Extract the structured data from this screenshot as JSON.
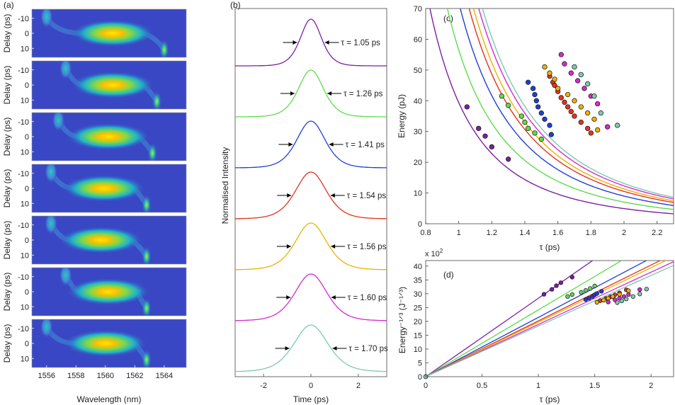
{
  "panels": {
    "a": {
      "label": "(a)",
      "type": "heatmap",
      "xlabel": "Wavelength (nm)",
      "ylabel": "Delay (ps)",
      "xticks": [
        "1556",
        "1558",
        "1560",
        "1562",
        "1564"
      ],
      "yticks": [
        "-10",
        "0",
        "10"
      ],
      "xlim": [
        1555,
        1565.5
      ],
      "ylim": [
        -16,
        16
      ],
      "rows": [
        {
          "main": [
            1560.5,
            0
          ],
          "side": [
            1556.0,
            -11
          ],
          "tail": [
            1564.0,
            11
          ]
        },
        {
          "main": [
            1560.5,
            0
          ],
          "side": [
            1557.3,
            -11
          ],
          "tail": [
            1563.5,
            11
          ]
        },
        {
          "main": [
            1560.2,
            0
          ],
          "side": [
            1556.8,
            -11
          ],
          "tail": [
            1563.2,
            11
          ]
        },
        {
          "main": [
            1559.9,
            0
          ],
          "side": [
            1556.3,
            -11
          ],
          "tail": [
            1562.8,
            11
          ]
        },
        {
          "main": [
            1559.7,
            0
          ],
          "side": [
            1556.3,
            -11
          ],
          "tail": [
            1562.8,
            11
          ]
        },
        {
          "main": [
            1560.2,
            0
          ],
          "side": [
            1557.3,
            -11
          ],
          "tail": [
            1562.8,
            11
          ]
        },
        {
          "main": [
            1560.0,
            0
          ],
          "side": [
            1556.0,
            -11
          ],
          "tail": [
            1562.8,
            11
          ]
        }
      ]
    },
    "b": {
      "label": "(b)",
      "type": "line",
      "xlabel": "Time (ps)",
      "ylabel": "Normalised Intensity",
      "xticks": [
        "-2",
        "0",
        "2"
      ],
      "xlim": [
        -3.2,
        3.2
      ],
      "traces": [
        {
          "tau": "τ = 1.05 ps",
          "fwhm": 1.05,
          "color": "#7B1FA2"
        },
        {
          "tau": "τ = 1.26 ps",
          "fwhm": 1.26,
          "color": "#5EDB4C"
        },
        {
          "tau": "τ = 1.41 ps",
          "fwhm": 1.41,
          "color": "#1F3FD6"
        },
        {
          "tau": "τ = 1.54 ps",
          "fwhm": 1.54,
          "color": "#E2341D"
        },
        {
          "tau": "τ = 1.56 ps",
          "fwhm": 1.56,
          "color": "#EDB100"
        },
        {
          "tau": "τ = 1.60 ps",
          "fwhm": 1.6,
          "color": "#D52ACE"
        },
        {
          "tau": "τ = 1.70 ps",
          "fwhm": 1.7,
          "color": "#7CC9B4"
        }
      ]
    }
  },
  "chart_data": [
    {
      "panel": "(c)",
      "type": "scatter",
      "xlabel": "τ (ps)",
      "ylabel": "Energy (pJ)",
      "xlim": [
        0.8,
        2.3
      ],
      "ylim": [
        0,
        70
      ],
      "xticks": [
        "0.8",
        "1",
        "1.2",
        "1.4",
        "1.6",
        "1.8",
        "2",
        "2.2"
      ],
      "yticks": [
        "0",
        "10",
        "20",
        "30",
        "40",
        "50",
        "60",
        "70"
      ],
      "series": [
        {
          "color": "#7B1FA2",
          "K": 39.4,
          "points": [
            [
              1.05,
              38
            ],
            [
              1.12,
              31
            ],
            [
              1.16,
              28.5
            ],
            [
              1.2,
              25
            ],
            [
              1.3,
              21
            ]
          ]
        },
        {
          "color": "#5EDB4C",
          "K": 56.5,
          "points": [
            [
              1.26,
              41.5
            ],
            [
              1.3,
              38.5
            ],
            [
              1.38,
              35
            ],
            [
              1.4,
              33
            ],
            [
              1.42,
              31
            ],
            [
              1.46,
              29.5
            ],
            [
              1.5,
              27.5
            ]
          ]
        },
        {
          "color": "#1F3FD6",
          "K": 72.0,
          "points": [
            [
              1.42,
              46
            ],
            [
              1.45,
              44
            ],
            [
              1.46,
              42
            ],
            [
              1.47,
              40
            ],
            [
              1.48,
              38
            ],
            [
              1.5,
              36
            ],
            [
              1.52,
              34
            ],
            [
              1.55,
              32
            ],
            [
              1.56,
              29
            ]
          ]
        },
        {
          "color": "#E2341D",
          "K": 84.1,
          "points": [
            [
              1.55,
              48
            ],
            [
              1.57,
              46
            ],
            [
              1.58,
              45
            ],
            [
              1.6,
              43
            ],
            [
              1.62,
              41
            ],
            [
              1.64,
              39.5
            ],
            [
              1.66,
              38
            ],
            [
              1.68,
              36.5
            ],
            [
              1.7,
              35
            ],
            [
              1.74,
              33
            ],
            [
              1.78,
              31
            ],
            [
              1.8,
              29.5
            ]
          ]
        },
        {
          "color": "#EDB100",
          "K": 90.5,
          "points": [
            [
              1.52,
              51
            ],
            [
              1.55,
              49
            ],
            [
              1.58,
              47
            ],
            [
              1.6,
              44
            ],
            [
              1.66,
              42
            ],
            [
              1.7,
              40
            ],
            [
              1.74,
              38
            ],
            [
              1.78,
              36
            ],
            [
              1.82,
              34
            ],
            [
              1.84,
              30.5
            ]
          ]
        },
        {
          "color": "#D52ACE",
          "K": 98.6,
          "points": [
            [
              1.62,
              55
            ],
            [
              1.64,
              52
            ],
            [
              1.68,
              49
            ],
            [
              1.72,
              46.5
            ],
            [
              1.76,
              44
            ],
            [
              1.8,
              41.5
            ],
            [
              1.84,
              39
            ],
            [
              1.9,
              31.5
            ]
          ]
        },
        {
          "color": "#7CC9B4",
          "K": 104.7,
          "points": [
            [
              1.7,
              51
            ],
            [
              1.74,
              48.5
            ],
            [
              1.78,
              45.5
            ],
            [
              1.82,
              41.5
            ],
            [
              1.86,
              36
            ],
            [
              1.96,
              32
            ]
          ]
        }
      ]
    },
    {
      "panel": "(d)",
      "type": "scatter",
      "xlabel": "τ (ps)",
      "ylabel": "Energy⁻¹ᐟ³ (J⁻¹ᐟ³)",
      "scale_label": "x 10",
      "scale_exp": "2",
      "xlim": [
        0,
        2.2
      ],
      "ylim": [
        0,
        4200
      ],
      "xticks": [
        "0",
        "0.5",
        "1",
        "1.5",
        "2"
      ],
      "yticks": [
        "0",
        "5",
        "10",
        "15",
        "20",
        "25",
        "30",
        "35",
        "40"
      ],
      "slopes": [
        2836,
        2416,
        2145,
        2019,
        1971,
        1890,
        1830
      ],
      "series": [
        {
          "color": "#7B1FA2",
          "points": [
            [
              1.05,
              2980
            ],
            [
              1.12,
              3160
            ],
            [
              1.16,
              3290
            ],
            [
              1.2,
              3400
            ],
            [
              1.3,
              3600
            ]
          ]
        },
        {
          "color": "#5EDB4C",
          "points": [
            [
              1.26,
              2900
            ],
            [
              1.3,
              2970
            ],
            [
              1.38,
              3050
            ],
            [
              1.42,
              3120
            ],
            [
              1.46,
              3190
            ],
            [
              1.5,
              3280
            ]
          ]
        },
        {
          "color": "#1F3FD6",
          "points": [
            [
              1.42,
              2790
            ],
            [
              1.45,
              2840
            ],
            [
              1.48,
              2900
            ],
            [
              1.5,
              2960
            ],
            [
              1.52,
              3010
            ],
            [
              1.56,
              3090
            ]
          ]
        },
        {
          "color": "#E2341D",
          "points": [
            [
              1.55,
              2750
            ],
            [
              1.6,
              2830
            ],
            [
              1.64,
              2890
            ],
            [
              1.68,
              2960
            ],
            [
              1.72,
              3030
            ],
            [
              1.78,
              3140
            ]
          ]
        },
        {
          "color": "#EDB100",
          "points": [
            [
              1.52,
              2690
            ],
            [
              1.58,
              2770
            ],
            [
              1.62,
              2830
            ],
            [
              1.66,
              2900
            ],
            [
              1.72,
              2980
            ],
            [
              1.8,
              3110
            ]
          ]
        },
        {
          "color": "#D52ACE",
          "points": [
            [
              1.62,
              2700
            ],
            [
              1.68,
              2780
            ],
            [
              1.72,
              2840
            ],
            [
              1.76,
              2900
            ],
            [
              1.8,
              2970
            ],
            [
              1.9,
              3150
            ]
          ]
        },
        {
          "color": "#7CC9B4",
          "points": [
            [
              1.7,
              2680
            ],
            [
              1.74,
              2740
            ],
            [
              1.78,
              2810
            ],
            [
              1.84,
              2900
            ],
            [
              1.9,
              2990
            ],
            [
              1.96,
              3170
            ]
          ]
        }
      ]
    }
  ]
}
